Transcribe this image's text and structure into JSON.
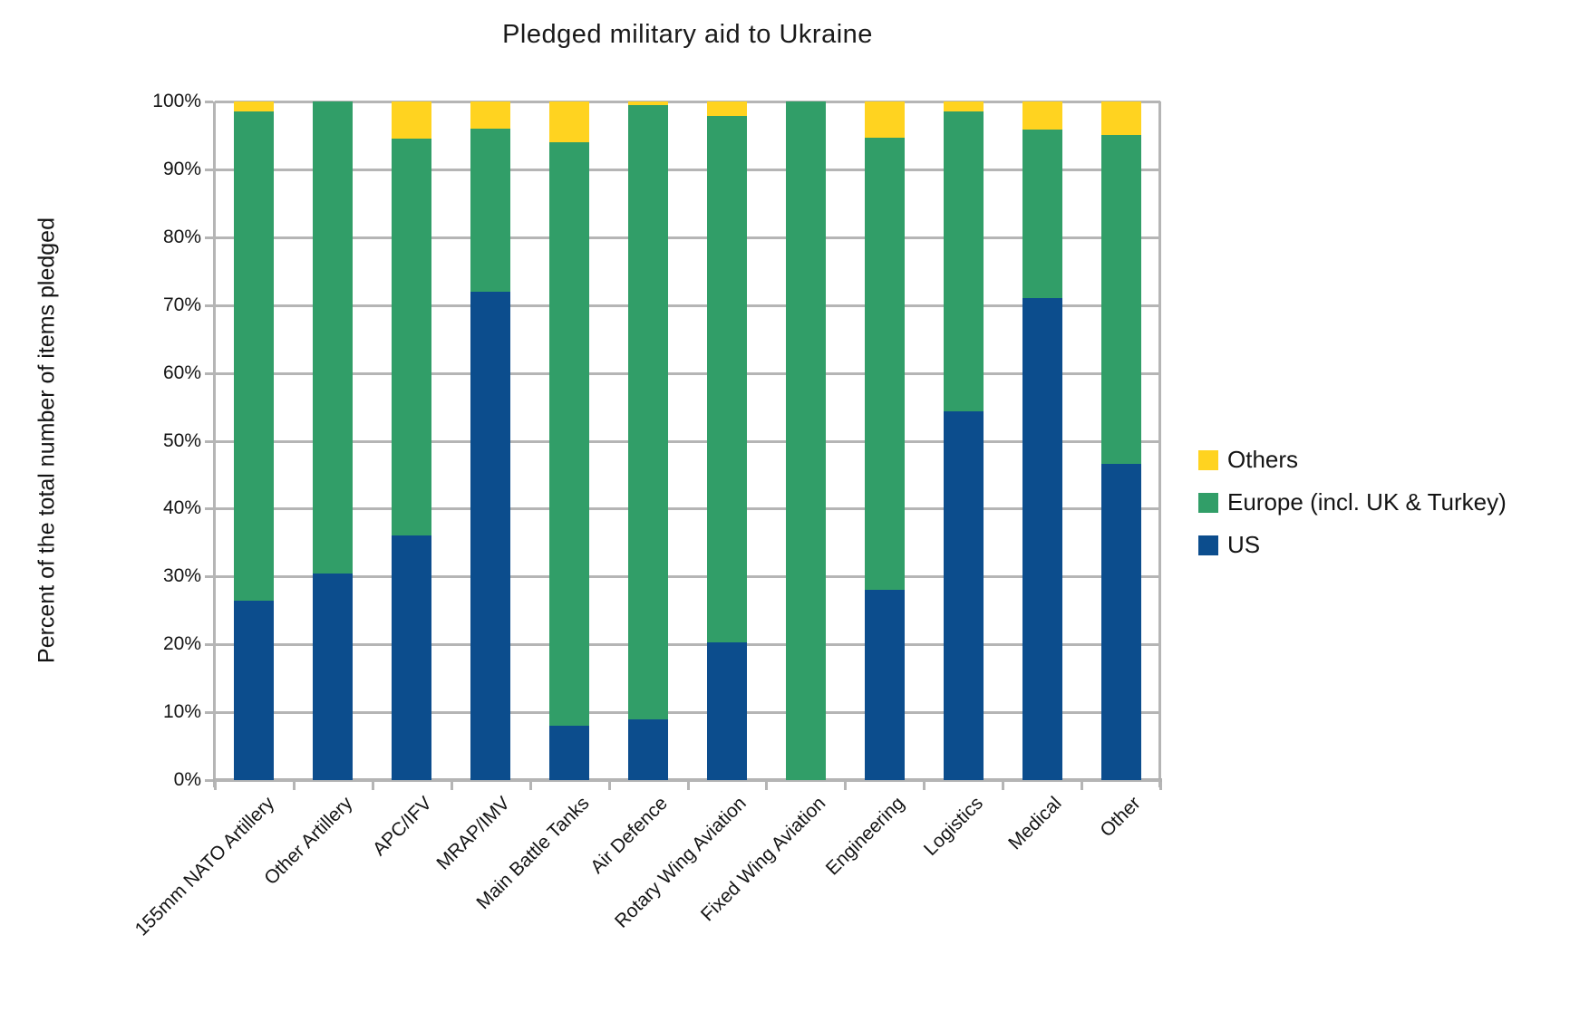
{
  "chart_data": {
    "type": "bar",
    "subtype": "stacked-percent",
    "title": "Pledged military aid to Ukraine",
    "ylabel": "Percent of the total number of items pledged",
    "xlabel": "",
    "ylim": [
      0,
      100
    ],
    "ytick_labels": [
      "0%",
      "10%",
      "20%",
      "30%",
      "40%",
      "50%",
      "60%",
      "70%",
      "80%",
      "90%",
      "100%"
    ],
    "grid": true,
    "categories": [
      "155mm NATO Artillery",
      "Other Artillery",
      "APC/IFV",
      "MRAP/IMV",
      "Main Battle Tanks",
      "Air Defence",
      "Rotary Wing Aviation",
      "Fixed Wing Aviation",
      "Engineering",
      "Logistics",
      "Medical",
      "Other"
    ],
    "series": [
      {
        "name": "US",
        "color": "#0C4D8D",
        "values": [
          26.5,
          30.5,
          36.0,
          72.0,
          8.0,
          9.0,
          20.3,
          0.0,
          28.0,
          54.3,
          71.0,
          46.6
        ]
      },
      {
        "name": "Europe (incl. UK & Turkey)",
        "color": "#319E68",
        "values": [
          72.1,
          69.5,
          58.5,
          24.0,
          86.0,
          90.5,
          77.5,
          100.0,
          66.6,
          44.3,
          24.8,
          48.5
        ]
      },
      {
        "name": "Others",
        "color": "#FFD320",
        "values": [
          1.4,
          0.0,
          5.5,
          4.0,
          6.0,
          0.5,
          2.2,
          0.0,
          5.4,
          1.4,
          4.2,
          4.9
        ]
      }
    ],
    "legend": {
      "position": "right",
      "entries": [
        "Others",
        "Europe (incl. UK & Turkey)",
        "US"
      ]
    },
    "colors": {
      "background": "#FFFFFF",
      "gridline": "#B5B5B5",
      "text": "#141414"
    }
  }
}
